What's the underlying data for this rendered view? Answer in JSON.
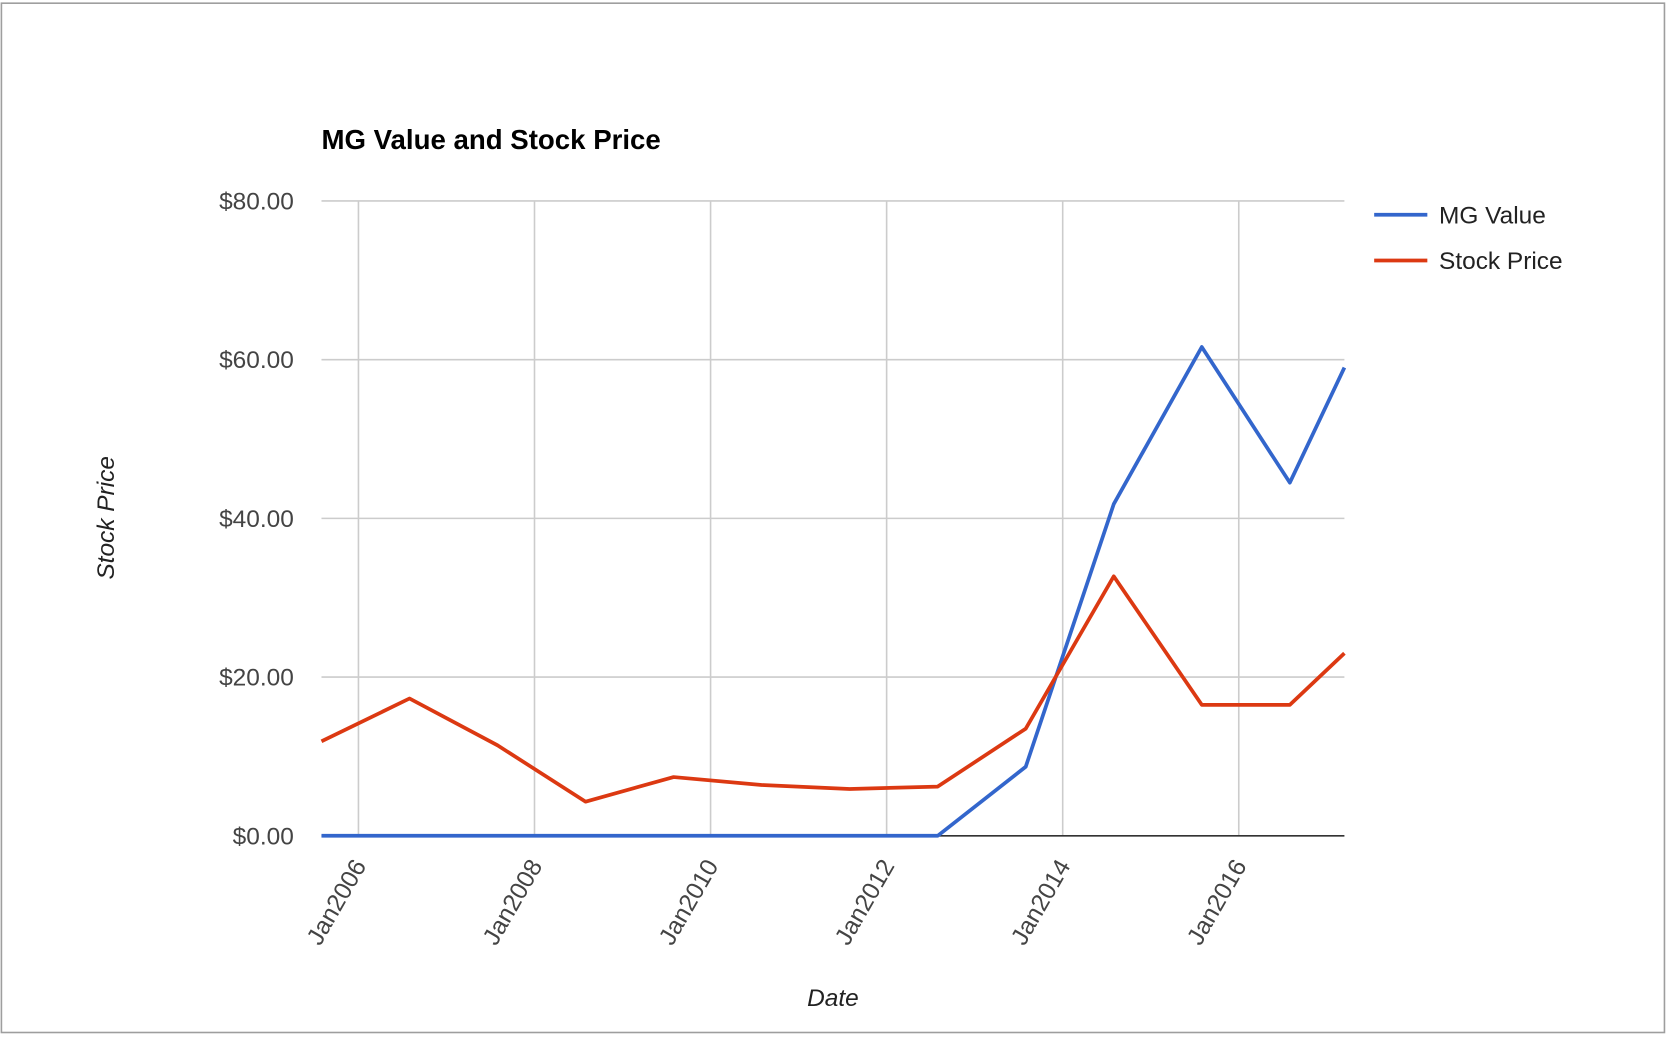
{
  "chart_data": {
    "type": "line",
    "title": "MG Value and Stock Price",
    "x_label": "Date",
    "y_label": "Stock Price",
    "x": [
      2005.58,
      2006.58,
      2007.58,
      2008.58,
      2009.58,
      2010.58,
      2011.58,
      2012.58,
      2013.58,
      2014.58,
      2015.58,
      2016.58,
      2017.2
    ],
    "xlim": [
      2005.58,
      2017.2
    ],
    "xticks": [
      {
        "value": 2006,
        "label": "Jan2006"
      },
      {
        "value": 2008,
        "label": "Jan2008"
      },
      {
        "value": 2010,
        "label": "Jan2010"
      },
      {
        "value": 2012,
        "label": "Jan2012"
      },
      {
        "value": 2014,
        "label": "Jan2014"
      },
      {
        "value": 2016,
        "label": "Jan2016"
      }
    ],
    "ylim": [
      0,
      80
    ],
    "yticks": [
      {
        "value": 0,
        "label": "$0.00"
      },
      {
        "value": 20,
        "label": "$20.00"
      },
      {
        "value": 40,
        "label": "$40.00"
      },
      {
        "value": 60,
        "label": "$60.00"
      },
      {
        "value": 80,
        "label": "$80.00"
      }
    ],
    "grid": true,
    "legend": "right",
    "series": [
      {
        "name": "MG Value",
        "color": "#3366cc",
        "values": [
          0,
          0,
          0,
          0,
          0,
          0,
          0,
          0,
          8.7,
          41.8,
          61.6,
          44.5,
          59.0
        ]
      },
      {
        "name": "Stock Price",
        "color": "#dc3912",
        "values": [
          11.9,
          17.3,
          11.4,
          4.3,
          7.4,
          6.4,
          5.9,
          6.2,
          13.5,
          32.7,
          16.5,
          16.5,
          23.0
        ]
      }
    ]
  }
}
